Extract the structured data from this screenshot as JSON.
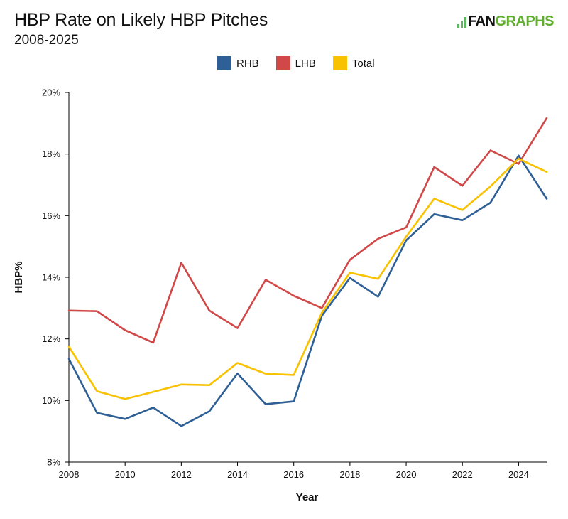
{
  "header": {
    "title": "HBP Rate on Likely HBP Pitches",
    "subtitle": "2008-2025",
    "logo_text_a": "FAN",
    "logo_text_b": "GRAPHS"
  },
  "chart_data": {
    "type": "line",
    "title": "HBP Rate on Likely HBP Pitches",
    "subtitle": "2008-2025",
    "xlabel": "Year",
    "ylabel": "HBP%",
    "x": [
      2008,
      2009,
      2010,
      2011,
      2012,
      2013,
      2014,
      2015,
      2016,
      2017,
      2018,
      2019,
      2020,
      2021,
      2022,
      2023,
      2024,
      2025
    ],
    "xlim": [
      2008,
      2025
    ],
    "ylim": [
      8,
      20
    ],
    "xticks": [
      "2008",
      "2010",
      "2012",
      "2014",
      "2016",
      "2018",
      "2020",
      "2022",
      "2024"
    ],
    "yticks": [
      "8%",
      "10%",
      "12%",
      "14%",
      "16%",
      "18%",
      "20%"
    ],
    "grid": false,
    "legend_position": "top-center",
    "series": [
      {
        "name": "RHB",
        "color": "#2e5f95",
        "values": [
          11.35,
          9.6,
          9.4,
          9.77,
          9.17,
          9.65,
          10.88,
          9.88,
          9.97,
          12.75,
          13.98,
          13.37,
          15.2,
          16.05,
          15.85,
          16.42,
          17.95,
          16.55
        ]
      },
      {
        "name": "LHB",
        "color": "#d14848",
        "values": [
          12.92,
          12.9,
          12.28,
          11.88,
          14.47,
          12.92,
          12.35,
          13.92,
          13.4,
          13.0,
          14.57,
          15.25,
          15.62,
          17.58,
          16.97,
          18.12,
          17.68,
          19.17
        ]
      },
      {
        "name": "Total",
        "color": "#f8c200",
        "values": [
          11.75,
          10.3,
          10.05,
          10.28,
          10.52,
          10.5,
          11.22,
          10.87,
          10.83,
          12.85,
          14.15,
          13.95,
          15.32,
          16.55,
          16.18,
          16.95,
          17.85,
          17.42
        ]
      }
    ]
  }
}
